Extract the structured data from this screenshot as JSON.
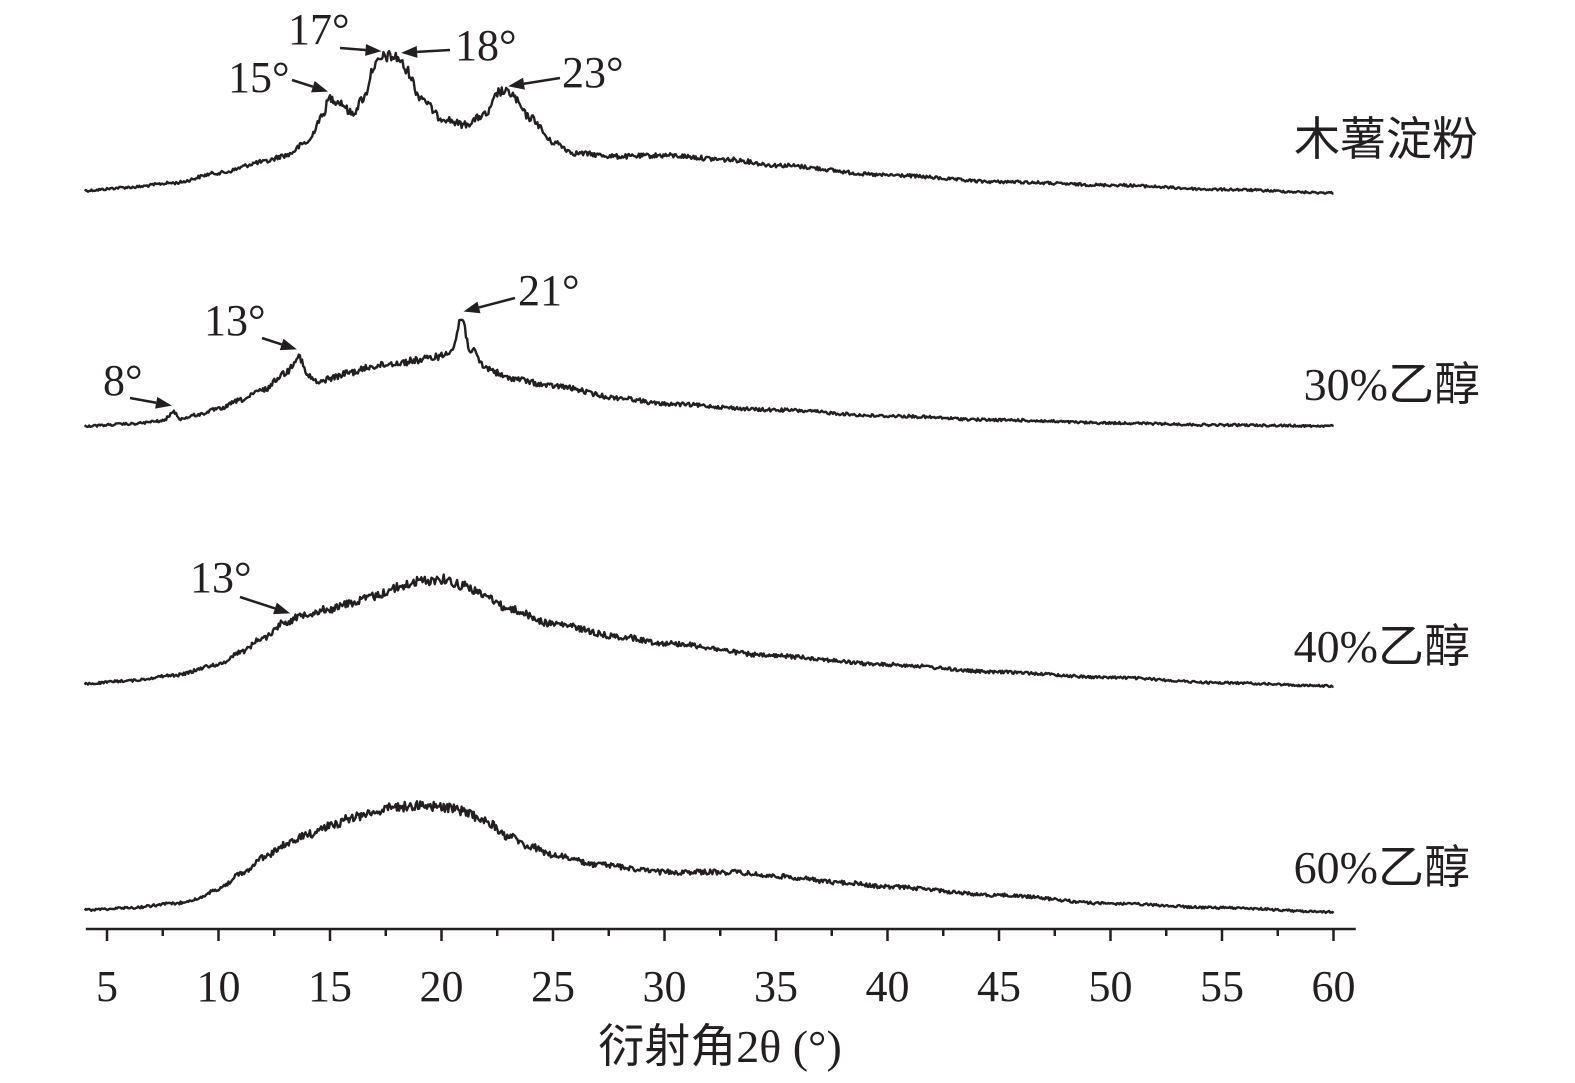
{
  "chart_data": {
    "type": "line",
    "xlabel": "衍射角2θ (°)",
    "ylabel": "",
    "xlim": [
      4,
      61
    ],
    "x_ticks": [
      "5",
      "10",
      "15",
      "20",
      "25",
      "30",
      "35",
      "40",
      "45",
      "50",
      "55",
      "60"
    ],
    "grid": false,
    "legend": "series labels at right end of each curve",
    "line_color": "#231f20",
    "series": [
      {
        "name": "木薯淀粉",
        "x": [
          4,
          6,
          8,
          10,
          12,
          13,
          14,
          14.6,
          15,
          15.4,
          16,
          16.5,
          17,
          17.5,
          18,
          18.5,
          19,
          20,
          21,
          22,
          22.6,
          23,
          24,
          25,
          26,
          28,
          30,
          33,
          35,
          40,
          45,
          50,
          55,
          60
        ],
        "y": [
          4,
          7,
          11,
          20,
          30,
          36,
          48,
          70,
          88,
          85,
          74,
          88,
          118,
          126,
          125,
          112,
          90,
          70,
          64,
          73,
          94,
          93,
          70,
          48,
          38,
          35,
          36,
          32,
          27,
          18,
          12,
          9,
          5,
          2
        ],
        "peaks": [
          {
            "label": "15°",
            "x": 15
          },
          {
            "label": "17°",
            "x": 17.4
          },
          {
            "label": "18°",
            "x": 18.1
          },
          {
            "label": "23°",
            "x": 22.9
          }
        ]
      },
      {
        "name": "30%乙醇",
        "x": [
          4,
          6,
          7.5,
          8,
          8.3,
          9,
          10,
          11,
          12,
          13,
          13.6,
          14,
          14.5,
          15,
          16,
          17,
          18,
          19,
          20,
          20.5,
          20.9,
          21.3,
          22,
          23,
          25,
          28,
          30,
          35,
          40,
          45,
          50,
          55,
          60
        ],
        "y": [
          2,
          4,
          7,
          16,
          9,
          13,
          19,
          28,
          38,
          55,
          72,
          52,
          45,
          50,
          56,
          62,
          65,
          68,
          72,
          80,
          110,
          78,
          60,
          50,
          42,
          30,
          24,
          18,
          12,
          8,
          5,
          3,
          2
        ],
        "peaks": [
          {
            "label": "8°",
            "x": 8
          },
          {
            "label": "13°",
            "x": 13.6
          },
          {
            "label": "21°",
            "x": 20.9
          }
        ]
      },
      {
        "name": "40%乙醇",
        "x": [
          4,
          6,
          8,
          10,
          11,
          12,
          13,
          14,
          15,
          16,
          17,
          18,
          19,
          20,
          21,
          22,
          23,
          25,
          28,
          30,
          35,
          40,
          45,
          50,
          55,
          60
        ],
        "y": [
          2,
          5,
          10,
          20,
          32,
          45,
          60,
          68,
          72,
          78,
          84,
          92,
          98,
          100,
          94,
          84,
          72,
          58,
          46,
          40,
          28,
          20,
          13,
          8,
          3,
          0
        ],
        "peaks": [
          {
            "label": "13°",
            "x": 13.3
          }
        ]
      },
      {
        "name": "60%乙醇",
        "x": [
          4,
          6,
          8,
          9,
          10,
          11,
          12,
          13,
          14,
          15,
          16,
          17,
          18,
          19,
          20,
          21,
          22,
          23,
          24,
          25,
          27,
          30,
          33,
          35,
          38,
          40,
          45,
          50,
          55,
          60
        ],
        "y": [
          2,
          4,
          8,
          12,
          22,
          36,
          52,
          64,
          74,
          82,
          90,
          96,
          100,
          102,
          100,
          96,
          86,
          72,
          62,
          54,
          45,
          38,
          38,
          34,
          28,
          24,
          16,
          8,
          4,
          0
        ],
        "peaks": []
      }
    ]
  }
}
